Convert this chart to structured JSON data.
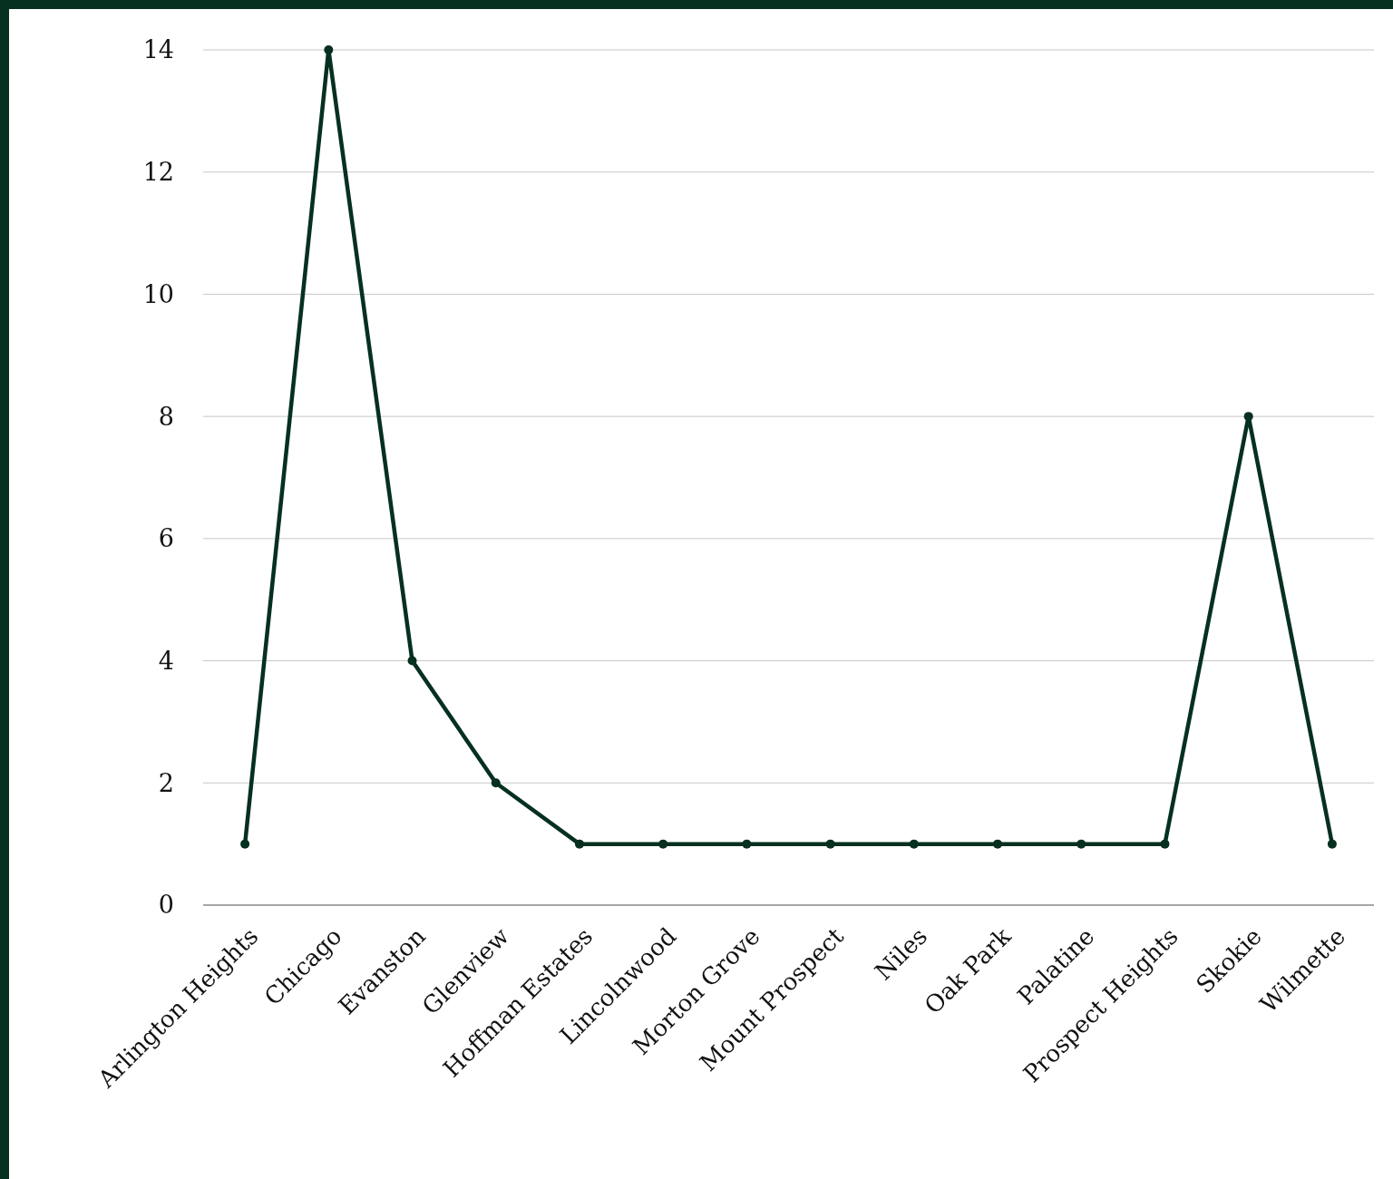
{
  "chart_data": {
    "type": "line",
    "categories": [
      "Arlington Heights",
      "Chicago",
      "Evanston",
      "Glenview",
      "Hoffman Estates",
      "Lincolnwood",
      "Morton Grove",
      "Mount Prospect",
      "Niles",
      "Oak Park",
      "Palatine",
      "Prospect Heights",
      "Skokie",
      "Wilmette"
    ],
    "series": [
      {
        "color": "#06301f",
        "values": [
          1,
          14,
          4,
          2,
          1,
          1,
          1,
          1,
          1,
          1,
          1,
          1,
          8,
          1
        ]
      }
    ],
    "ylim": [
      0,
      14
    ],
    "yticks": [
      0,
      2,
      4,
      6,
      8,
      10,
      12,
      14
    ],
    "grid": "y",
    "marker": "circle",
    "line_style": "solid"
  }
}
